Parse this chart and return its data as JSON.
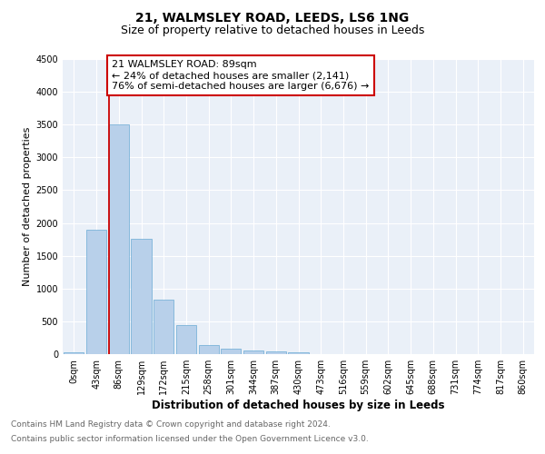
{
  "title": "21, WALMSLEY ROAD, LEEDS, LS6 1NG",
  "subtitle": "Size of property relative to detached houses in Leeds",
  "xlabel": "Distribution of detached houses by size in Leeds",
  "ylabel": "Number of detached properties",
  "bin_labels": [
    "0sqm",
    "43sqm",
    "86sqm",
    "129sqm",
    "172sqm",
    "215sqm",
    "258sqm",
    "301sqm",
    "344sqm",
    "387sqm",
    "430sqm",
    "473sqm",
    "516sqm",
    "559sqm",
    "602sqm",
    "645sqm",
    "688sqm",
    "731sqm",
    "774sqm",
    "817sqm",
    "860sqm"
  ],
  "bar_heights": [
    30,
    1900,
    3500,
    1760,
    825,
    440,
    140,
    90,
    60,
    45,
    30,
    5,
    0,
    0,
    0,
    0,
    0,
    0,
    0,
    0,
    0
  ],
  "bar_color": "#b8d0ea",
  "bar_edge_color": "#6aaad4",
  "vline_x_index": 2,
  "vline_color": "#cc0000",
  "annotation_line1": "21 WALMSLEY ROAD: 89sqm",
  "annotation_line2": "← 24% of detached houses are smaller (2,141)",
  "annotation_line3": "76% of semi-detached houses are larger (6,676) →",
  "annotation_box_color": "#cc0000",
  "ylim": [
    0,
    4500
  ],
  "yticks": [
    0,
    500,
    1000,
    1500,
    2000,
    2500,
    3000,
    3500,
    4000,
    4500
  ],
  "footnote1": "Contains HM Land Registry data © Crown copyright and database right 2024.",
  "footnote2": "Contains public sector information licensed under the Open Government Licence v3.0.",
  "bg_color": "#eaf0f8",
  "title_fontsize": 10,
  "subtitle_fontsize": 9,
  "axis_label_fontsize": 8.5,
  "ylabel_fontsize": 8,
  "tick_fontsize": 7,
  "annotation_fontsize": 8,
  "footnote_fontsize": 6.5
}
